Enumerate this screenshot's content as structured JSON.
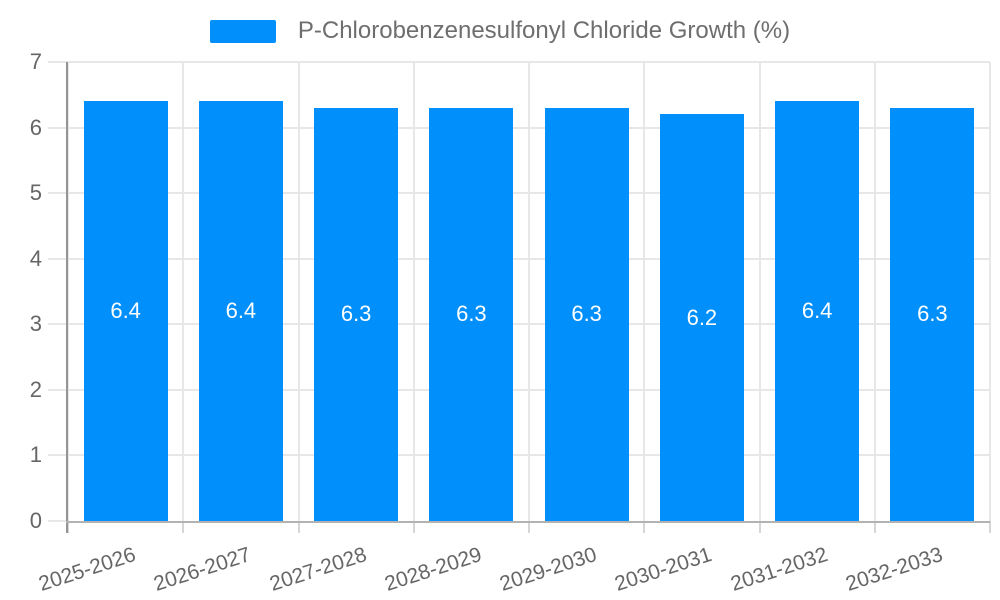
{
  "legend": {
    "label": "P-Chlorobenzenesulfonyl Chloride Growth (%)",
    "swatch_color": "#008FFB"
  },
  "chart_data": {
    "type": "bar",
    "title": "P-Chlorobenzenesulfonyl Chloride Growth (%)",
    "categories": [
      "2025-2026",
      "2026-2027",
      "2027-2028",
      "2028-2029",
      "2029-2030",
      "2030-2031",
      "2031-2032",
      "2032-2033"
    ],
    "series": [
      {
        "name": "P-Chlorobenzenesulfonyl Chloride Growth (%)",
        "values": [
          6.4,
          6.4,
          6.3,
          6.3,
          6.3,
          6.2,
          6.4,
          6.3
        ]
      }
    ],
    "data_labels": [
      "6.4",
      "6.4",
      "6.3",
      "6.3",
      "6.3",
      "6.2",
      "6.4",
      "6.3"
    ],
    "xlabel": "",
    "ylabel": "",
    "ylim": [
      0,
      7
    ],
    "yticks": [
      0,
      1,
      2,
      3,
      4,
      5,
      6,
      7
    ],
    "bar_color": "#008FFB",
    "grid": true,
    "legend_position": "top",
    "x_label_rotation_deg": -18
  },
  "colors": {
    "bar": "#008FFB",
    "gridline": "#e7e7e7",
    "y_axis_line": "#949494",
    "x_axis_line": "#b2b2b2",
    "tick": "#d6d6d6",
    "axis_text": "#666666",
    "legend_text": "#6e6e6e",
    "data_label_text": "#ffffff",
    "background": "#ffffff"
  }
}
